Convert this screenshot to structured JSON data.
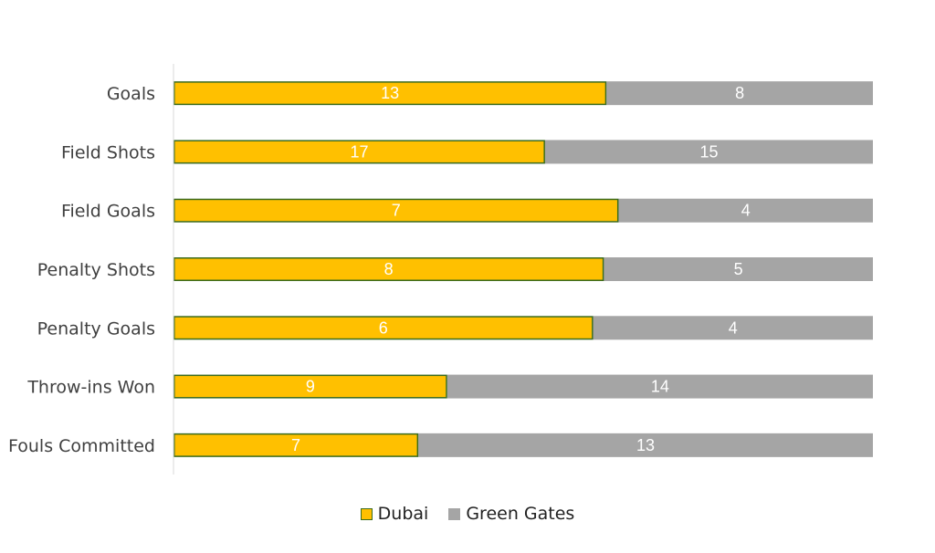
{
  "chart_data": {
    "type": "bar",
    "orientation": "horizontal",
    "stacking": "percent",
    "categories": [
      "Goals",
      "Field Shots",
      "Field Goals",
      "Penalty Shots",
      "Penalty Goals",
      "Throw-ins Won",
      "Fouls Committed"
    ],
    "series": [
      {
        "name": "Dubai",
        "values": [
          13,
          17,
          7,
          8,
          6,
          9,
          7
        ],
        "color": "#FFC000",
        "border": "#3A6B1E"
      },
      {
        "name": "Green Gates",
        "values": [
          8,
          15,
          4,
          5,
          4,
          14,
          13
        ],
        "color": "#A5A5A5"
      }
    ],
    "title": "",
    "xlabel": "",
    "ylabel": "",
    "legend_position": "bottom",
    "grid": false
  }
}
